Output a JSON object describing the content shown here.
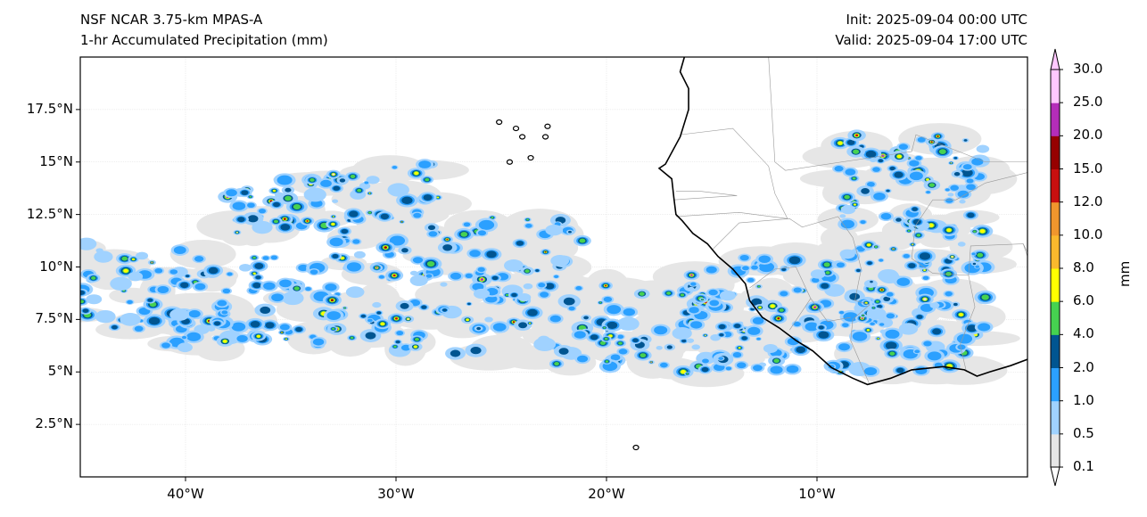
{
  "title": {
    "model": "NSF NCAR 3.75-km MPAS-A",
    "field": "1-hr Accumulated Precipitation (mm)",
    "init": "Init: 2025-09-04 00:00 UTC",
    "valid": "Valid: 2025-09-04 17:00 UTC"
  },
  "map": {
    "lon_range": [
      -45,
      0
    ],
    "lat_range": [
      0,
      20
    ],
    "lon_ticks": [
      {
        "value": -40,
        "label": "40°W"
      },
      {
        "value": -30,
        "label": "30°W"
      },
      {
        "value": -20,
        "label": "20°W"
      },
      {
        "value": -10,
        "label": "10°W"
      }
    ],
    "lat_ticks": [
      {
        "value": 17.5,
        "label": "17.5°N"
      },
      {
        "value": 15,
        "label": "15°N"
      },
      {
        "value": 12.5,
        "label": "12.5°N"
      },
      {
        "value": 10,
        "label": "10°N"
      },
      {
        "value": 7.5,
        "label": "7.5°N"
      },
      {
        "value": 5,
        "label": "5°N"
      },
      {
        "value": 2.5,
        "label": "2.5°N"
      }
    ]
  },
  "colorbar": {
    "label": "mm",
    "levels": [
      "0.1",
      "0.5",
      "1.0",
      "2.0",
      "4.0",
      "6.0",
      "8.0",
      "10.0",
      "12.0",
      "15.0",
      "20.0",
      "25.0",
      "30.0"
    ],
    "colors": [
      "#e6e6e6",
      "#a0d2ff",
      "#2ba0ff",
      "#005591",
      "#46d250",
      "#ffff00",
      "#fab92d",
      "#f0962d",
      "#c80f0f",
      "#960000",
      "#b42db9",
      "#ffc8ff"
    ],
    "extend_max_color": "#ffc8ff",
    "extend_min_color": "#ffffff"
  }
}
